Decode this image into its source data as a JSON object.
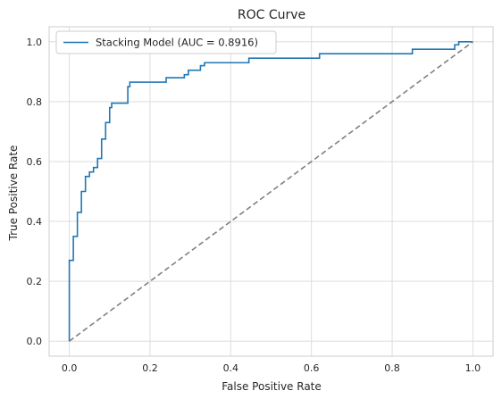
{
  "chart_data": {
    "type": "line",
    "title": "ROC Curve",
    "xlabel": "False Positive Rate",
    "ylabel": "True Positive Rate",
    "xlim": [
      -0.05,
      1.05
    ],
    "ylim": [
      -0.05,
      1.05
    ],
    "xticks": [
      0.0,
      0.2,
      0.4,
      0.6,
      0.8,
      1.0
    ],
    "yticks": [
      0.0,
      0.2,
      0.4,
      0.6,
      0.8,
      1.0
    ],
    "xtick_labels": [
      "0.0",
      "0.2",
      "0.4",
      "0.6",
      "0.8",
      "1.0"
    ],
    "ytick_labels": [
      "0.0",
      "0.2",
      "0.4",
      "0.6",
      "0.8",
      "1.0"
    ],
    "grid": true,
    "legend_position": "top-left",
    "series": [
      {
        "name": "Stacking Model (AUC = 0.8916)",
        "color": "#1f77b4",
        "style": "solid",
        "x": [
          0.0,
          0.0,
          0.0,
          0.01,
          0.01,
          0.02,
          0.02,
          0.03,
          0.03,
          0.04,
          0.04,
          0.05,
          0.05,
          0.06,
          0.06,
          0.07,
          0.07,
          0.08,
          0.08,
          0.09,
          0.09,
          0.1,
          0.1,
          0.105,
          0.105,
          0.115,
          0.115,
          0.145,
          0.145,
          0.15,
          0.15,
          0.24,
          0.24,
          0.285,
          0.285,
          0.295,
          0.295,
          0.325,
          0.325,
          0.335,
          0.335,
          0.445,
          0.445,
          0.62,
          0.62,
          0.85,
          0.85,
          0.955,
          0.955,
          0.965,
          0.965,
          1.0
        ],
        "y": [
          0.0,
          0.27,
          0.27,
          0.27,
          0.35,
          0.35,
          0.43,
          0.43,
          0.5,
          0.5,
          0.55,
          0.55,
          0.565,
          0.565,
          0.58,
          0.58,
          0.61,
          0.61,
          0.675,
          0.675,
          0.73,
          0.73,
          0.78,
          0.78,
          0.795,
          0.795,
          0.795,
          0.795,
          0.85,
          0.85,
          0.865,
          0.865,
          0.88,
          0.88,
          0.89,
          0.89,
          0.905,
          0.905,
          0.92,
          0.92,
          0.93,
          0.93,
          0.945,
          0.945,
          0.96,
          0.96,
          0.975,
          0.975,
          0.99,
          0.99,
          1.0,
          1.0
        ]
      },
      {
        "name": "",
        "color": "#808080",
        "style": "dashed",
        "x": [
          0.0,
          1.0
        ],
        "y": [
          0.0,
          1.0
        ]
      }
    ]
  }
}
